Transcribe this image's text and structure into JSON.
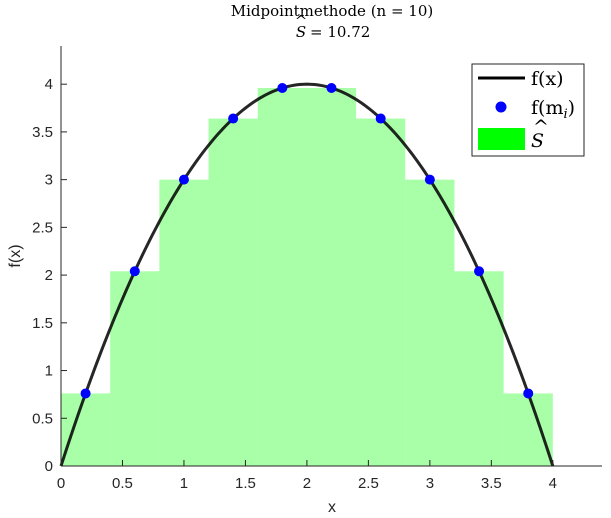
{
  "chart_data": {
    "type": "bar",
    "title": "Midpointmethode (n = 10)",
    "subtitle_symbol": "S",
    "subtitle_value": "= 10.72",
    "xlabel": "x",
    "ylabel": "f(x)",
    "xlim": [
      0,
      4.4
    ],
    "ylim": [
      0,
      4.4
    ],
    "xticks": [
      "0",
      "0.5",
      "1",
      "1.5",
      "2",
      "2.5",
      "3",
      "3.5",
      "4"
    ],
    "xtick_values": [
      0,
      0.5,
      1,
      1.5,
      2,
      2.5,
      3,
      3.5,
      4
    ],
    "yticks": [
      "0",
      "0.5",
      "1",
      "1.5",
      "2",
      "2.5",
      "3",
      "3.5",
      "4"
    ],
    "ytick_values": [
      0,
      0.5,
      1,
      1.5,
      2,
      2.5,
      3,
      3.5,
      4
    ],
    "grid": false,
    "legend_position": "top-right",
    "function": {
      "name": "f(x)",
      "domain": [
        0,
        4
      ],
      "formula": "x*(4-x)",
      "color": "#000000"
    },
    "midpoints": {
      "name": "f(m_i)",
      "x": [
        0.2,
        0.6,
        1.0,
        1.4,
        1.8,
        2.2,
        2.6,
        3.0,
        3.4,
        3.8
      ],
      "y": [
        0.76,
        2.04,
        3.0,
        3.64,
        3.96,
        3.96,
        3.64,
        3.0,
        2.04,
        0.76
      ],
      "color": "#0000ff"
    },
    "rectangles": {
      "name": "S",
      "x_left": [
        0,
        0.4,
        0.8,
        1.2,
        1.6,
        2.0,
        2.4,
        2.8,
        3.2,
        3.6
      ],
      "width": 0.4,
      "heights": [
        0.76,
        2.04,
        3.0,
        3.64,
        3.96,
        3.96,
        3.64,
        3.0,
        2.04,
        0.76
      ],
      "color": "#00ff00"
    },
    "legend": [
      {
        "label": "f(x)",
        "kind": "line"
      },
      {
        "label_base": "f(m",
        "label_sub": "i",
        "label_end": ")",
        "kind": "marker"
      },
      {
        "label": "S",
        "kind": "patch"
      }
    ]
  }
}
